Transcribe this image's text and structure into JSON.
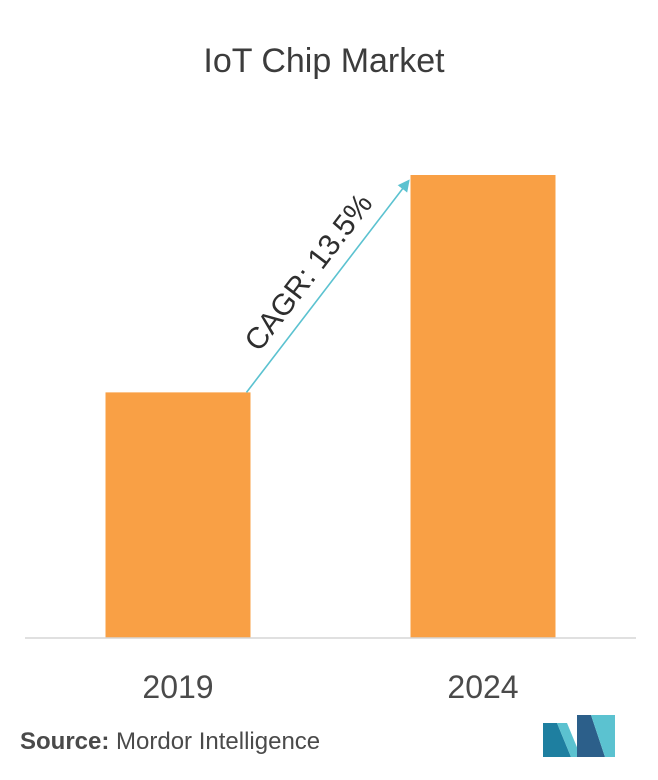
{
  "chart_data": {
    "type": "bar",
    "title": "IoT Chip Market",
    "categories": [
      "2019",
      "2024"
    ],
    "values": [
      1.0,
      1.885
    ],
    "annotation": "CAGR: 13.5%",
    "grid": false,
    "legend": "none",
    "bar_color": "#F9A045",
    "arrow_color": "#5BC2D0"
  },
  "source": {
    "label": "Source:",
    "text": "Mordor Intelligence"
  },
  "logo": {
    "name": "mordor-intelligence-logo",
    "colors": [
      "#1E7FA0",
      "#5BC2D0",
      "#2C5F8A"
    ]
  }
}
